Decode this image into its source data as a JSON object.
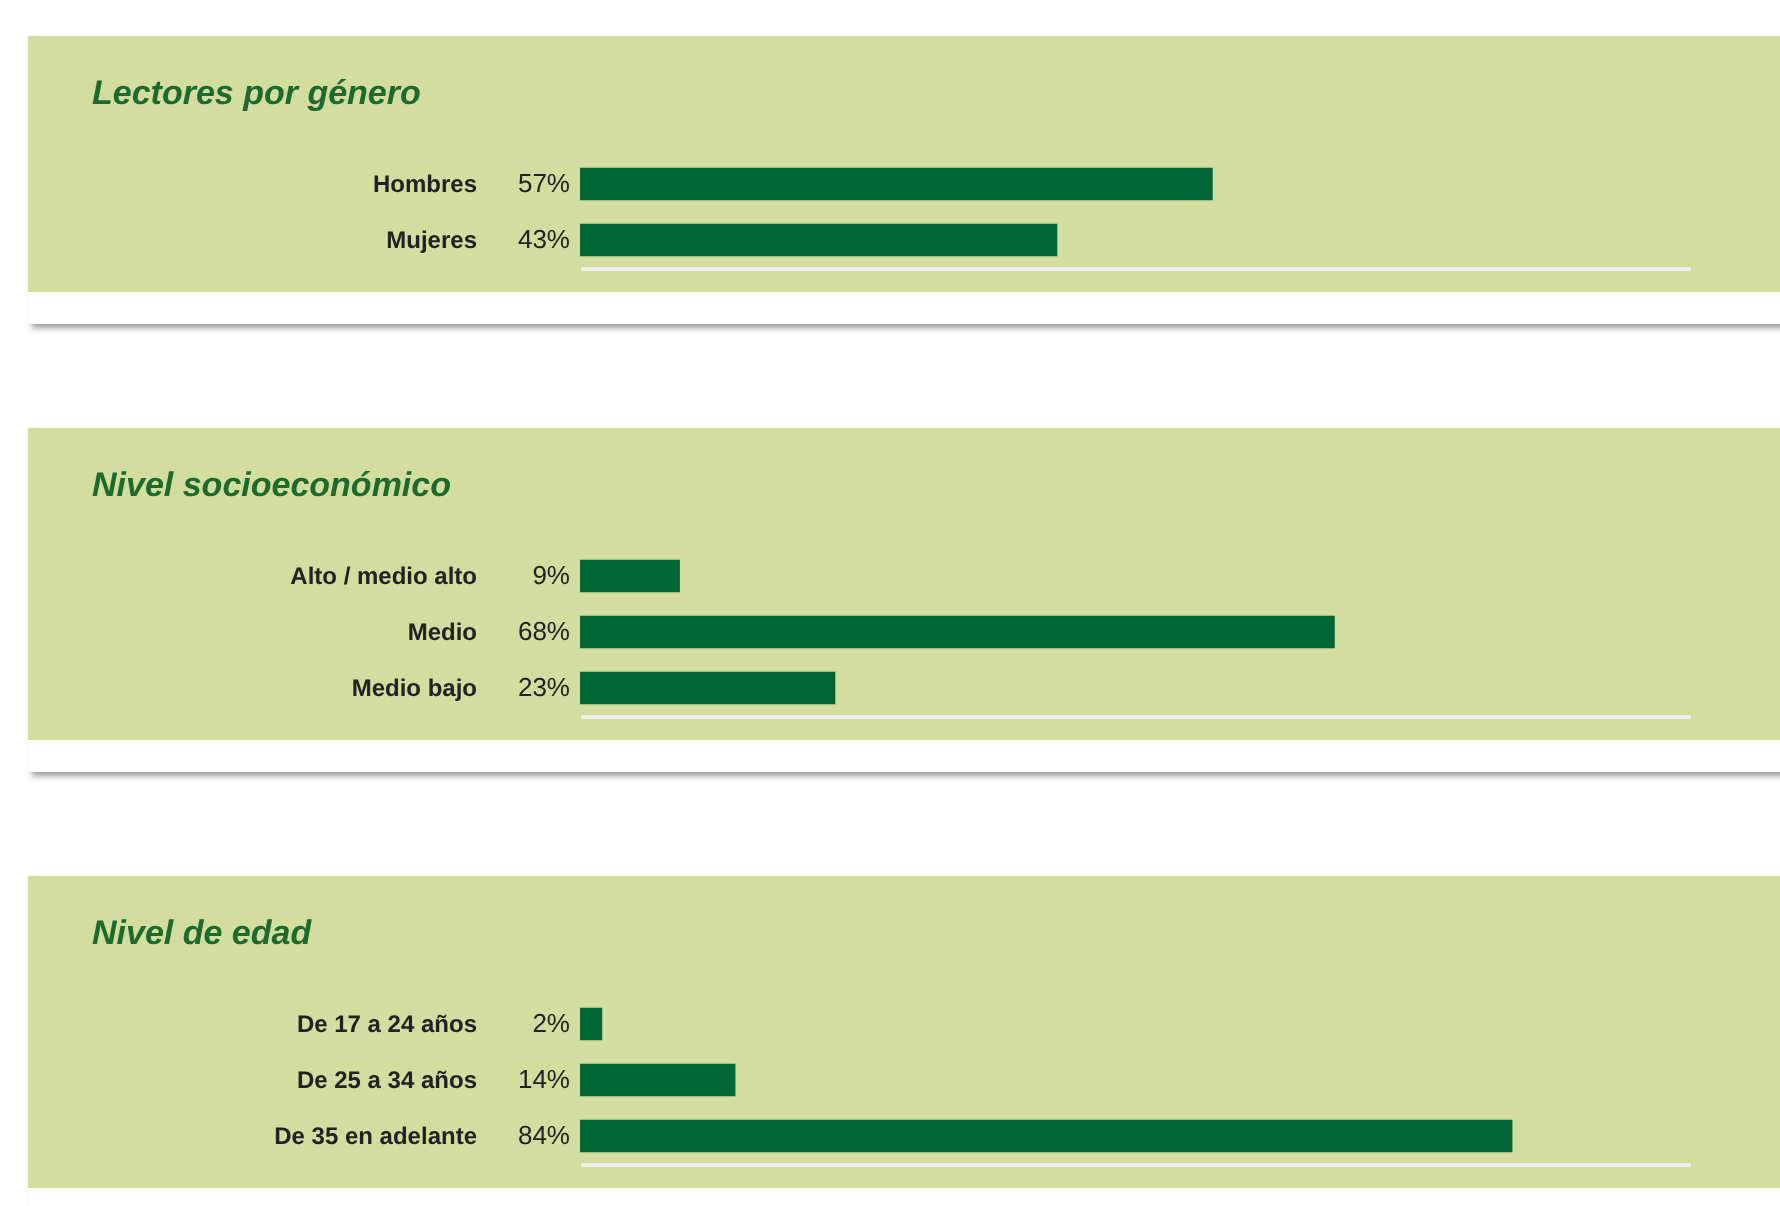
{
  "chart_data": [
    {
      "type": "bar",
      "orientation": "horizontal",
      "title": "Lectores por género",
      "categories": [
        "Hombres",
        "Mujeres"
      ],
      "values": [
        57,
        43
      ],
      "value_labels": [
        "57%",
        "43%"
      ],
      "color": "#006633",
      "xlim": [
        0,
        100
      ],
      "tick_labels": "y"
    },
    {
      "type": "bar",
      "orientation": "horizontal",
      "title": "Nivel socioeconómico",
      "categories": [
        "Alto / medio alto",
        "Medio",
        "Medio bajo"
      ],
      "values": [
        9,
        68,
        23
      ],
      "value_labels": [
        "9%",
        "68%",
        "23%"
      ],
      "color": "#006633",
      "xlim": [
        0,
        100
      ],
      "tick_labels": "y"
    },
    {
      "type": "bar",
      "orientation": "horizontal",
      "title": "Nivel de edad",
      "categories": [
        "De 17 a 24 años",
        "De 25 a 34 años",
        "De 35 en adelante"
      ],
      "values": [
        2,
        14,
        84
      ],
      "value_labels": [
        "2%",
        "14%",
        "84%"
      ],
      "color": "#006633",
      "xlim": [
        0,
        100
      ],
      "tick_labels": "y"
    }
  ]
}
